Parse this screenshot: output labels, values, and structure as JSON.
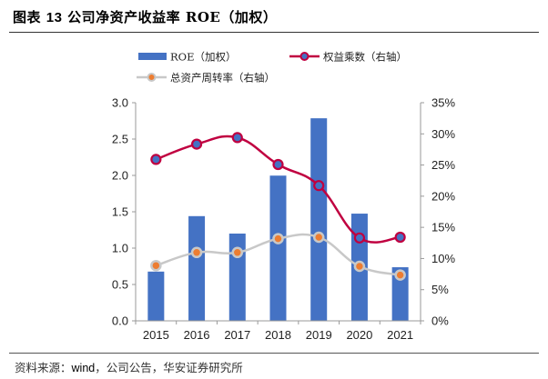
{
  "header": {
    "prefix": "图表",
    "number": "13",
    "title": "公司净资产收益率 ROE（加权）"
  },
  "footer": {
    "source_label": "资料来源：",
    "source_en": "wind",
    "source_rest": "，公司公告，华安证券研究所"
  },
  "chart_data": {
    "type": "bar",
    "title": "公司净资产收益率 ROE（加权）",
    "categories": [
      "2015",
      "2016",
      "2017",
      "2018",
      "2019",
      "2020",
      "2021"
    ],
    "series": [
      {
        "name": "ROE（加权）",
        "kind": "bar",
        "axis": "right",
        "values": [
          7.9,
          16.8,
          14.0,
          23.3,
          32.5,
          17.2,
          8.6
        ],
        "unit": "%",
        "color": "#4472c4"
      },
      {
        "name": "权益乘数（右轴）",
        "kind": "line",
        "axis": "left",
        "values": [
          2.22,
          2.43,
          2.52,
          2.15,
          1.86,
          1.14,
          1.15
        ],
        "color": "#c00040",
        "marker_fill": "#4472c4"
      },
      {
        "name": "总资产周转率（右轴）",
        "kind": "line",
        "axis": "left",
        "values": [
          0.76,
          0.94,
          0.94,
          1.13,
          1.15,
          0.75,
          0.63
        ],
        "color": "#c8c8c8",
        "marker_fill": "#ed7d31"
      }
    ],
    "left_axis": {
      "ylim": [
        0,
        3.0
      ],
      "ticks": [
        "0.0",
        "0.5",
        "1.0",
        "1.5",
        "2.0",
        "2.5",
        "3.0"
      ]
    },
    "right_axis": {
      "ylim": [
        0,
        35
      ],
      "ticks": [
        "0%",
        "5%",
        "10%",
        "15%",
        "20%",
        "25%",
        "30%",
        "35%"
      ]
    },
    "xlabel": "",
    "ylabel": "",
    "grid": false,
    "legend_position": "top-center"
  }
}
